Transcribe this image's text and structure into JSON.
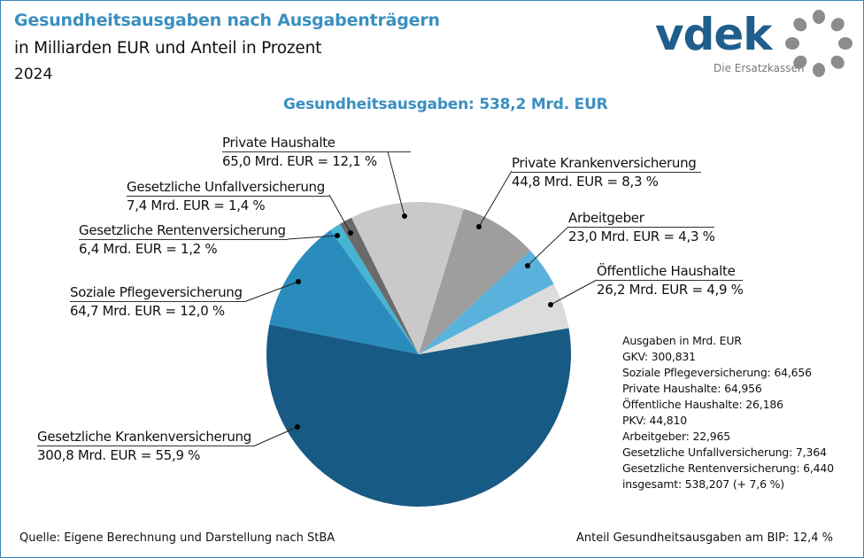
{
  "header": {
    "title": "Gesundheitsausgaben nach Ausgabenträgern",
    "subtitle": "in Milliarden EUR und Anteil in Prozent",
    "year": "2024"
  },
  "logo": {
    "brand": "vdek",
    "tagline": "Die Ersatzkassen",
    "brand_color": "#1f5e8c",
    "ring_color": "#8c8c8c"
  },
  "footer": {
    "source": "Quelle: Eigene Berechnung und Darstellung nach StBA",
    "bip": "Anteil Gesundheitsausgaben am BIP: 12,4 %"
  },
  "stats_box": {
    "heading": "Ausgaben in Mrd. EUR",
    "lines": [
      "GKV: 300,831",
      "Soziale Pflegeversicherung:  64,656",
      "Private Haushalte: 64,956",
      "Öffentliche Haushalte: 26,186",
      "PKV: 44,810",
      "Arbeitgeber: 22,965",
      "Gesetzliche  Unfallversicherung: 7,364",
      "Gesetzliche  Rentenversicherung:  6,440",
      "insgesamt: 538,207 (+ 7,6 %)"
    ]
  },
  "chart_data": {
    "type": "pie",
    "title": "Gesundheitsausgaben: 538,2 Mrd. EUR",
    "unit": "Mrd. EUR",
    "total": 538.2,
    "slices": [
      {
        "name": "Gesetzliche Krankenversicherung",
        "value": 300.8,
        "percent": 55.9,
        "label": "300,8 Mrd. EUR = 55,9 %",
        "color": "#175a83"
      },
      {
        "name": "Soziale Pflegeversicherung",
        "value": 64.7,
        "percent": 12.0,
        "label": "64,7 Mrd. EUR = 12,0 %",
        "color": "#2a8bbd"
      },
      {
        "name": "Gesetzliche Rentenversicherung",
        "value": 6.4,
        "percent": 1.2,
        "label": "6,4 Mrd. EUR = 1,2 %",
        "color": "#46b4d2"
      },
      {
        "name": "Gesetzliche Unfallversicherung",
        "value": 7.4,
        "percent": 1.4,
        "label": "7,4 Mrd. EUR = 1,4 %",
        "color": "#6a6a6a"
      },
      {
        "name": "Private Haushalte",
        "value": 65.0,
        "percent": 12.1,
        "label": "65,0 Mrd. EUR = 12,1 %",
        "color": "#c9c9c9"
      },
      {
        "name": "Private Krankenversicherung",
        "value": 44.8,
        "percent": 8.3,
        "label": "44,8 Mrd. EUR = 8,3 %",
        "color": "#9e9e9e"
      },
      {
        "name": "Arbeitgeber",
        "value": 23.0,
        "percent": 4.3,
        "label": "23,0 Mrd. EUR = 4,3 %",
        "color": "#5ab2dc"
      },
      {
        "name": "Öffentliche Haushalte",
        "value": 26.2,
        "percent": 4.9,
        "label": "26,2 Mrd. EUR = 4,9 %",
        "color": "#dcdcdc"
      }
    ]
  }
}
